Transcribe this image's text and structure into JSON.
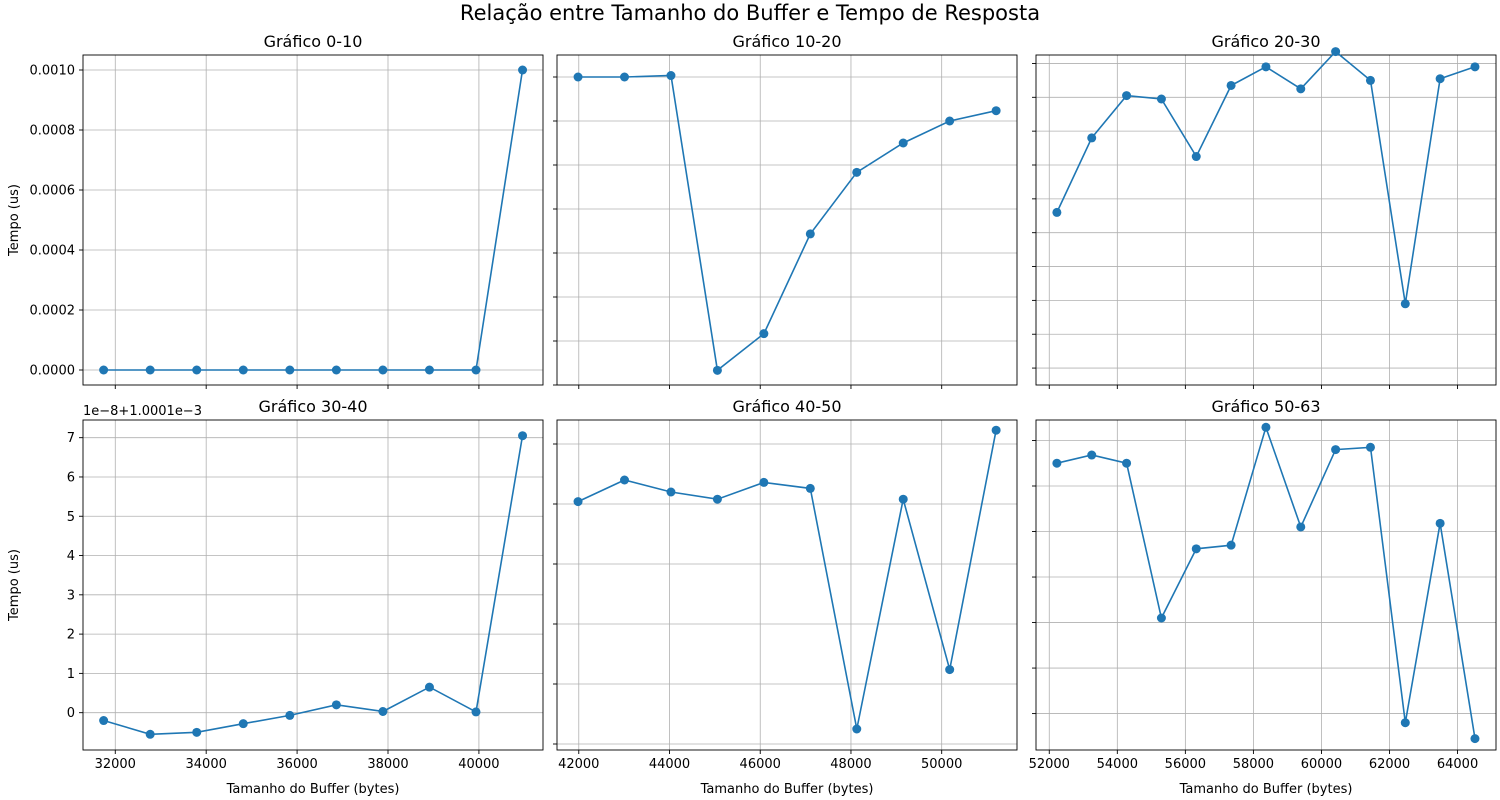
{
  "figure": {
    "title": "Relação entre Tamanho do Buffer e Tempo de Resposta",
    "line_color": "#1f77b4",
    "grid_color": "#b0b0b0"
  },
  "chart_data": [
    {
      "type": "line",
      "title": "Gráfico 0-10",
      "xlabel": "",
      "ylabel": "Tempo (us)",
      "grid": true,
      "sharex_group": "col0",
      "y_ticks": [
        0.0,
        0.0002,
        0.0004,
        0.0006,
        0.0008,
        0.001
      ],
      "y_tick_labels": [
        "0.0000",
        "0.0002",
        "0.0004",
        "0.0006",
        "0.0008",
        "0.0010"
      ],
      "ylim": [
        -5e-05,
        0.00105
      ],
      "series": [
        {
          "x": [
            31744,
            32768,
            33792,
            34816,
            35840,
            36864,
            37888,
            38912,
            39936,
            40960
          ],
          "y": [
            0.0,
            0.0,
            0.0,
            0.0,
            0.0,
            0.0,
            0.0,
            0.0,
            0.0,
            0.001
          ]
        }
      ]
    },
    {
      "type": "line",
      "title": "Gráfico 10-20",
      "xlabel": "",
      "ylabel": "",
      "grid": true,
      "sharex_group": "col1",
      "ylim": [
        0.00098,
        0.0010025
      ],
      "y_ticks": [
        0.00098,
        0.000983,
        0.000986,
        0.000989,
        0.000992,
        0.000995,
        0.000998,
        0.001001
      ],
      "series": [
        {
          "x": [
            41984,
            43008,
            44032,
            45056,
            46080,
            47104,
            48128,
            49152,
            50176,
            51200
          ],
          "y": [
            0.001001,
            0.001001,
            0.0010011,
            0.000981,
            0.0009835,
            0.0009903,
            0.0009945,
            0.0009965,
            0.000998,
            0.0009987
          ]
        }
      ]
    },
    {
      "type": "line",
      "title": "Gráfico 20-30",
      "xlabel": "",
      "ylabel": "",
      "grid": true,
      "sharex_group": "col2",
      "ylim": [
        0.00099,
        0.0010095
      ],
      "y_ticks": [
        0.000991,
        0.000993,
        0.000995,
        0.000997,
        0.000999,
        0.001001,
        0.001003,
        0.001005,
        0.001007,
        0.001009
      ],
      "series": [
        {
          "x": [
            52224,
            53248,
            54272,
            55296,
            56320,
            57344,
            58368,
            59392,
            60416,
            61440,
            62464,
            63488,
            64512
          ],
          "y": [
            0.0010002,
            0.0010046,
            0.0010071,
            0.0010069,
            0.0010035,
            0.0010077,
            0.0010088,
            0.0010075,
            0.0010097,
            0.001008,
            0.0009948,
            0.0010081,
            0.0010088
          ]
        }
      ]
    },
    {
      "type": "line",
      "title": "Gráfico 30-40",
      "xlabel": "Tamanho do Buffer (bytes)",
      "ylabel": "Tempo (us)",
      "grid": true,
      "sharex_group": "col0",
      "offset_label": "1e−8+1.0001e−3",
      "y_ticks": [
        0,
        1,
        2,
        3,
        4,
        5,
        6,
        7
      ],
      "y_tick_labels": [
        "0",
        "1",
        "2",
        "3",
        "4",
        "5",
        "6",
        "7"
      ],
      "ylim": [
        -0.95,
        7.45
      ],
      "x_ticks": [
        32000,
        34000,
        36000,
        38000,
        40000
      ],
      "x_tick_labels": [
        "32000",
        "34000",
        "36000",
        "38000",
        "40000"
      ],
      "xlim": [
        31290,
        41410
      ],
      "series": [
        {
          "x": [
            31744,
            32768,
            33792,
            34816,
            35840,
            36864,
            37888,
            38912,
            39936,
            40960
          ],
          "y": [
            -0.2,
            -0.55,
            -0.5,
            -0.28,
            -0.07,
            0.2,
            0.03,
            0.65,
            0.02,
            7.05
          ]
        }
      ]
    },
    {
      "type": "line",
      "title": "Gráfico 40-50",
      "xlabel": "Tamanho do Buffer (bytes)",
      "ylabel": "",
      "grid": true,
      "sharex_group": "col1",
      "ylim": [
        -1.5,
        4.0
      ],
      "y_ticks": [
        -1.4,
        -0.4,
        0.6,
        1.6,
        2.6,
        3.6
      ],
      "x_ticks": [
        42000,
        44000,
        46000,
        48000,
        50000
      ],
      "x_tick_labels": [
        "42000",
        "44000",
        "46000",
        "48000",
        "50000"
      ],
      "xlim": [
        41520,
        51660
      ],
      "series": [
        {
          "x": [
            41984,
            43008,
            44032,
            45056,
            46080,
            47104,
            48128,
            49152,
            50176,
            51200
          ],
          "y": [
            2.64,
            3.0,
            2.8,
            2.68,
            2.96,
            2.86,
            -1.15,
            2.68,
            -0.16,
            3.83
          ]
        }
      ]
    },
    {
      "type": "line",
      "title": "Gráfico 50-63",
      "xlabel": "Tamanho do Buffer (bytes)",
      "ylabel": "",
      "grid": true,
      "sharex_group": "col2",
      "ylim": [
        -3.3,
        3.95
      ],
      "y_ticks": [
        -2.5,
        -1.5,
        -0.5,
        0.5,
        1.5,
        2.5,
        3.5
      ],
      "x_ticks": [
        52000,
        54000,
        56000,
        58000,
        60000,
        62000,
        64000
      ],
      "x_tick_labels": [
        "52000",
        "54000",
        "56000",
        "58000",
        "60000",
        "62000",
        "64000"
      ],
      "xlim": [
        51610,
        65130
      ],
      "series": [
        {
          "x": [
            52224,
            53248,
            54272,
            55296,
            56320,
            57344,
            58368,
            59392,
            60416,
            61440,
            62464,
            63488,
            64512
          ],
          "y": [
            3.0,
            3.18,
            3.0,
            -0.4,
            1.12,
            1.2,
            3.79,
            1.6,
            3.3,
            3.35,
            -2.7,
            1.68,
            -3.05
          ]
        }
      ]
    }
  ]
}
